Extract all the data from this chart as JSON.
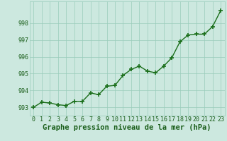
{
  "x": [
    0,
    1,
    2,
    3,
    4,
    5,
    6,
    7,
    8,
    9,
    10,
    11,
    12,
    13,
    14,
    15,
    16,
    17,
    18,
    19,
    20,
    21,
    22,
    23
  ],
  "y": [
    993.0,
    993.3,
    993.25,
    993.15,
    993.1,
    993.35,
    993.35,
    993.85,
    993.75,
    994.25,
    994.3,
    994.9,
    995.25,
    995.45,
    995.15,
    995.05,
    995.45,
    995.95,
    996.9,
    997.3,
    997.35,
    997.35,
    997.8,
    998.75
  ],
  "line_color": "#1a6e1a",
  "marker_color": "#1a6e1a",
  "bg_color": "#cce8df",
  "grid_color": "#99ccbb",
  "xlabel": "Graphe pression niveau de la mer (hPa)",
  "ylim_min": 992.5,
  "ylim_max": 999.3,
  "yticks": [
    993,
    994,
    995,
    996,
    997,
    998
  ],
  "xticks": [
    0,
    1,
    2,
    3,
    4,
    5,
    6,
    7,
    8,
    9,
    10,
    11,
    12,
    13,
    14,
    15,
    16,
    17,
    18,
    19,
    20,
    21,
    22,
    23
  ],
  "tick_fontsize": 6.0,
  "xlabel_fontsize": 7.5,
  "marker_size": 4,
  "marker_edge_width": 1.2,
  "line_width": 1.0
}
